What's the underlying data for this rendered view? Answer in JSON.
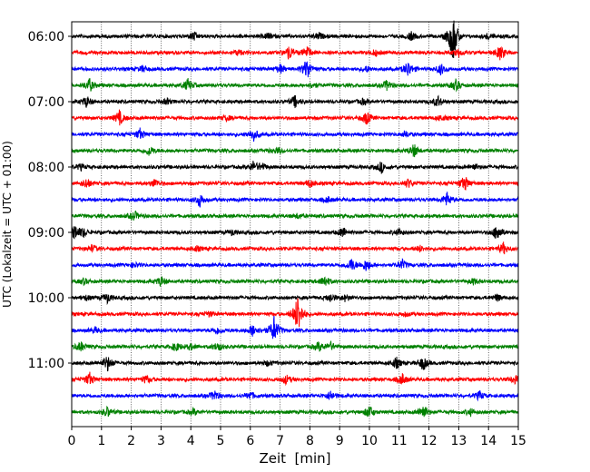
{
  "chart_data": {
    "type": "line",
    "title": "",
    "xlabel": "Zeit  [min]",
    "ylabel": "UTC (Lokalzeit = UTC + 01:00)",
    "xlim": [
      0,
      15
    ],
    "x_ticks": [
      "0",
      "1",
      "2",
      "3",
      "4",
      "5",
      "6",
      "7",
      "8",
      "9",
      "10",
      "11",
      "12",
      "13",
      "14",
      "15"
    ],
    "y_ticks": [
      "06:00",
      "07:00",
      "08:00",
      "09:00",
      "10:00",
      "11:00"
    ],
    "grid": "vertical dotted at each minute",
    "line_minutes": 15,
    "colors": [
      "#000000",
      "#ff0000",
      "#0000ff",
      "#008000"
    ],
    "series": [
      {
        "start": "06:00",
        "color": "#000000",
        "events": [
          [
            12.8,
            5.0
          ],
          [
            4.1,
            0.8
          ],
          [
            11.4,
            0.7
          ],
          [
            8.3,
            0.6
          ],
          [
            6.6,
            0.5
          ],
          [
            14.0,
            0.5
          ]
        ]
      },
      {
        "start": "06:15",
        "color": "#ff0000",
        "events": [
          [
            7.3,
            1.3
          ],
          [
            7.9,
            1.2
          ],
          [
            14.4,
            1.4
          ],
          [
            13.0,
            0.6
          ],
          [
            5.6,
            0.5
          ],
          [
            10.2,
            0.5
          ]
        ]
      },
      {
        "start": "06:30",
        "color": "#0000ff",
        "events": [
          [
            7.9,
            2.0
          ],
          [
            11.3,
            1.5
          ],
          [
            12.4,
            1.0
          ],
          [
            7.0,
            0.8
          ],
          [
            2.4,
            0.6
          ],
          [
            9.9,
            0.5
          ]
        ]
      },
      {
        "start": "06:45",
        "color": "#008000",
        "events": [
          [
            0.6,
            1.2
          ],
          [
            3.9,
            1.1
          ],
          [
            10.6,
            1.0
          ],
          [
            12.9,
            1.0
          ],
          [
            8.1,
            0.5
          ]
        ]
      },
      {
        "start": "07:00",
        "color": "#000000",
        "events": [
          [
            0.5,
            1.0
          ],
          [
            7.5,
            1.0
          ],
          [
            12.3,
            1.0
          ],
          [
            3.2,
            0.5
          ],
          [
            9.8,
            0.5
          ]
        ]
      },
      {
        "start": "07:15",
        "color": "#ff0000",
        "events": [
          [
            1.6,
            1.3
          ],
          [
            9.9,
            1.2
          ],
          [
            5.2,
            0.5
          ],
          [
            12.4,
            0.5
          ]
        ]
      },
      {
        "start": "07:30",
        "color": "#0000ff",
        "events": [
          [
            2.3,
            1.0
          ],
          [
            6.1,
            1.2
          ],
          [
            11.2,
            0.5
          ]
        ]
      },
      {
        "start": "07:45",
        "color": "#008000",
        "events": [
          [
            2.6,
            0.9
          ],
          [
            11.5,
            1.2
          ],
          [
            6.9,
            0.5
          ]
        ]
      },
      {
        "start": "08:00",
        "color": "#000000",
        "events": [
          [
            6.1,
            0.9
          ],
          [
            6.4,
            0.6
          ],
          [
            10.4,
            1.0
          ],
          [
            0.3,
            0.5
          ],
          [
            13.5,
            0.6
          ]
        ]
      },
      {
        "start": "08:15",
        "color": "#ff0000",
        "events": [
          [
            0.5,
            0.9
          ],
          [
            2.8,
            0.8
          ],
          [
            8.0,
            0.7
          ],
          [
            11.3,
            0.8
          ],
          [
            13.2,
            1.4
          ]
        ]
      },
      {
        "start": "08:30",
        "color": "#0000ff",
        "events": [
          [
            4.3,
            1.2
          ],
          [
            12.6,
            1.3
          ],
          [
            8.6,
            0.5
          ]
        ]
      },
      {
        "start": "08:45",
        "color": "#008000",
        "events": [
          [
            2.1,
            0.9
          ],
          [
            7.6,
            0.4
          ]
        ]
      },
      {
        "start": "09:00",
        "color": "#000000",
        "events": [
          [
            0.1,
            1.4
          ],
          [
            0.4,
            0.7
          ],
          [
            9.1,
            1.0
          ],
          [
            11.0,
            0.6
          ],
          [
            14.3,
            1.6
          ],
          [
            5.4,
            0.5
          ]
        ]
      },
      {
        "start": "09:15",
        "color": "#ff0000",
        "events": [
          [
            0.7,
            0.6
          ],
          [
            11.7,
            0.5
          ],
          [
            14.5,
            1.0
          ],
          [
            4.2,
            0.4
          ]
        ]
      },
      {
        "start": "09:30",
        "color": "#0000ff",
        "events": [
          [
            9.4,
            1.2
          ],
          [
            9.9,
            1.2
          ],
          [
            11.1,
            0.9
          ],
          [
            2.1,
            0.4
          ]
        ]
      },
      {
        "start": "09:45",
        "color": "#008000",
        "events": [
          [
            3.0,
            0.9
          ],
          [
            8.5,
            1.0
          ],
          [
            0.4,
            0.5
          ],
          [
            13.5,
            0.5
          ]
        ]
      },
      {
        "start": "10:00",
        "color": "#000000",
        "events": [
          [
            1.2,
            0.9
          ],
          [
            8.7,
            0.8
          ],
          [
            9.2,
            0.6
          ],
          [
            14.3,
            0.6
          ],
          [
            0.5,
            0.4
          ]
        ]
      },
      {
        "start": "10:15",
        "color": "#ff0000",
        "events": [
          [
            7.6,
            3.8
          ],
          [
            4.6,
            0.4
          ],
          [
            11.2,
            0.4
          ]
        ]
      },
      {
        "start": "10:30",
        "color": "#0000ff",
        "events": [
          [
            6.1,
            1.2
          ],
          [
            6.8,
            2.5
          ],
          [
            4.9,
            0.6
          ],
          [
            0.8,
            0.5
          ]
        ]
      },
      {
        "start": "10:45",
        "color": "#008000",
        "events": [
          [
            0.3,
            0.9
          ],
          [
            3.5,
            0.8
          ],
          [
            4.9,
            0.8
          ],
          [
            8.3,
            0.8
          ],
          [
            8.7,
            0.7
          ],
          [
            4.0,
            0.5
          ]
        ]
      },
      {
        "start": "11:00",
        "color": "#000000",
        "events": [
          [
            1.2,
            1.5
          ],
          [
            10.9,
            1.0
          ],
          [
            11.8,
            1.3
          ],
          [
            6.6,
            0.5
          ]
        ]
      },
      {
        "start": "11:15",
        "color": "#ff0000",
        "events": [
          [
            0.6,
            1.2
          ],
          [
            2.5,
            0.7
          ],
          [
            7.2,
            0.8
          ],
          [
            11.1,
            1.0
          ],
          [
            14.9,
            0.8
          ]
        ]
      },
      {
        "start": "11:30",
        "color": "#0000ff",
        "events": [
          [
            4.8,
            1.0
          ],
          [
            6.0,
            0.7
          ],
          [
            8.7,
            0.9
          ],
          [
            13.7,
            0.8
          ]
        ]
      },
      {
        "start": "11:45",
        "color": "#008000",
        "events": [
          [
            1.2,
            0.9
          ],
          [
            4.1,
            0.5
          ],
          [
            10.0,
            1.2
          ],
          [
            11.8,
            1.4
          ],
          [
            13.4,
            0.6
          ]
        ]
      }
    ]
  }
}
